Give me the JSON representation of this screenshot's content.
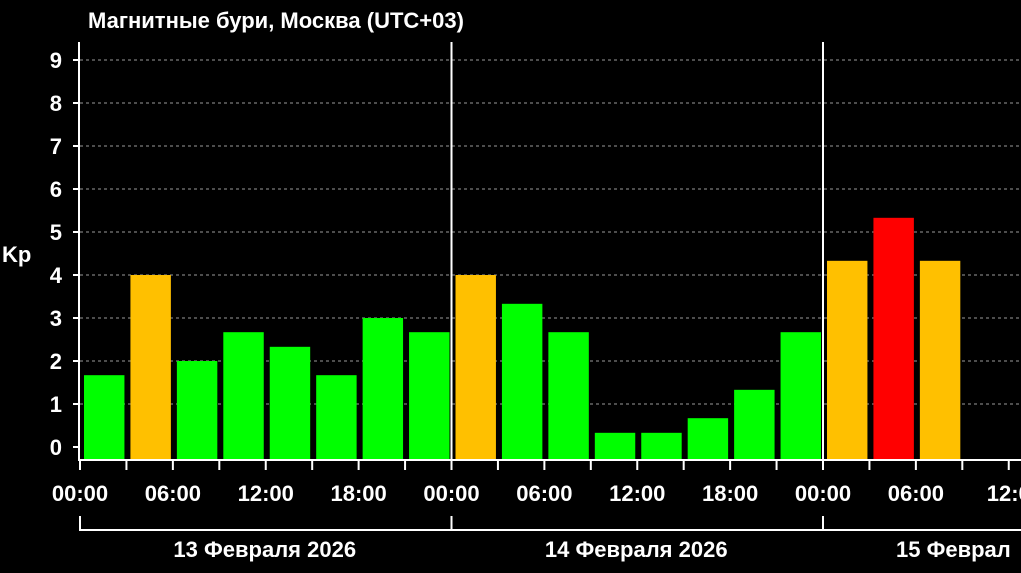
{
  "chart_data": {
    "type": "bar",
    "title": "Магнитные бури, Москва (UTC+03)",
    "ylabel": "Kp",
    "ylim": [
      0,
      9
    ],
    "yticks": [
      0,
      1,
      2,
      3,
      4,
      5,
      6,
      7,
      8,
      9
    ],
    "grid": true,
    "x_ticks": [
      "00:00",
      "06:00",
      "12:00",
      "18:00",
      "00:00",
      "06:00",
      "12:00",
      "18:00",
      "00:00",
      "06:00",
      "12:0"
    ],
    "days": [
      {
        "label": "13 Февраля 2026",
        "values": [
          1.67,
          4.0,
          2.0,
          2.67,
          2.33,
          1.67,
          3.0,
          2.67
        ]
      },
      {
        "label": "14 Февраля 2026",
        "values": [
          4.0,
          3.33,
          2.67,
          0.33,
          0.33,
          0.67,
          1.33,
          2.67
        ]
      },
      {
        "label": "15 Феврал",
        "values": [
          4.33,
          5.33,
          4.33
        ]
      }
    ],
    "colors": {
      "background": "#000000",
      "axes": "#ffffff",
      "grid": "#9a9a9a",
      "quiet": "#00ff00",
      "active": "#ffc000",
      "storm": "#ff0000"
    }
  }
}
